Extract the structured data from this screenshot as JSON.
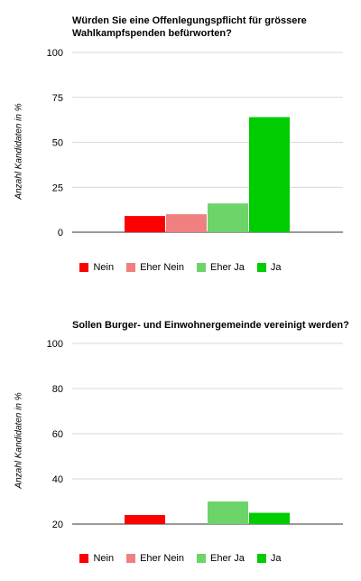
{
  "chart_data": [
    {
      "type": "bar",
      "title": "Würden Sie eine Offenlegungspflicht für grössere Wahlkampfspenden befürworten?",
      "ylabel": "Anzahl Kandidaten in %",
      "ylim": [
        0,
        100
      ],
      "yticks": [
        "100",
        "75",
        "50",
        "25",
        "0"
      ],
      "ytick_values": [
        100,
        75,
        50,
        25,
        0
      ],
      "grid": true,
      "legend_position": "bottom",
      "series": [
        {
          "name": "Nein",
          "color": "#ff0000",
          "value": 9
        },
        {
          "name": "Eher Nein",
          "color": "#f08080",
          "value": 10
        },
        {
          "name": "Eher Ja",
          "color": "#6dd46a",
          "value": 16
        },
        {
          "name": "Ja",
          "color": "#00cc00",
          "value": 64
        }
      ]
    },
    {
      "type": "bar",
      "title": "Sollen Burger- und Einwohnergemeinde vereinigt werden?",
      "ylabel": "Anzahl Kandidaten in %",
      "ylim": [
        20,
        100
      ],
      "yticks": [
        "100",
        "80",
        "60",
        "40",
        "20"
      ],
      "ytick_values": [
        100,
        80,
        60,
        40,
        20
      ],
      "grid": true,
      "legend_position": "bottom",
      "series": [
        {
          "name": "Nein",
          "color": "#ff0000",
          "value": 24
        },
        {
          "name": "Eher Nein",
          "color": "#f08080",
          "value": 0
        },
        {
          "name": "Eher Ja",
          "color": "#6dd46a",
          "value": 30
        },
        {
          "name": "Ja",
          "color": "#00cc00",
          "value": 25
        }
      ]
    }
  ]
}
